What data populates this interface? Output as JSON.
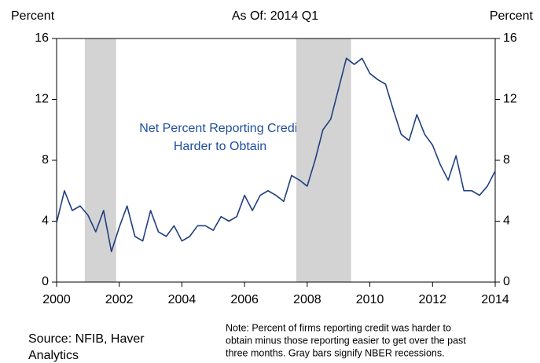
{
  "chart_data": {
    "type": "line",
    "title": "As Of: 2014 Q1",
    "y_label": "Percent",
    "y2_label": "Percent",
    "annotation": [
      "Net Percent Reporting Credit",
      "Harder to Obtain"
    ],
    "source": [
      "Source: NFIB, Haver",
      "Analytics"
    ],
    "note": [
      "Note: Percent of firms reporting credit was harder to",
      "obtain minus those reporting easier to get over the past",
      "three months. Gray bars signify NBER recessions."
    ],
    "xlim": [
      2000,
      2014
    ],
    "xticks": [
      2000,
      2002,
      2004,
      2006,
      2008,
      2010,
      2012,
      2014
    ],
    "ylim": [
      0,
      16
    ],
    "yticks": [
      0,
      4,
      8,
      12,
      16
    ],
    "recessions": [
      [
        2000.9,
        2001.9
      ],
      [
        2007.65,
        2009.4
      ]
    ],
    "recession_color": "#d3d3d3",
    "x": [
      2000,
      2000.25,
      2000.5,
      2000.75,
      2001,
      2001.25,
      2001.5,
      2001.75,
      2002,
      2002.25,
      2002.5,
      2002.75,
      2003,
      2003.25,
      2003.5,
      2003.75,
      2004,
      2004.25,
      2004.5,
      2004.75,
      2005,
      2005.25,
      2005.5,
      2005.75,
      2006,
      2006.25,
      2006.5,
      2006.75,
      2007,
      2007.25,
      2007.5,
      2007.75,
      2008,
      2008.25,
      2008.5,
      2008.75,
      2009,
      2009.25,
      2009.5,
      2009.75,
      2010,
      2010.25,
      2010.5,
      2010.75,
      2011,
      2011.25,
      2011.5,
      2011.75,
      2012,
      2012.25,
      2012.5,
      2012.75,
      2013,
      2013.25,
      2013.5,
      2013.75,
      2014
    ],
    "series": [
      {
        "color": "#1f3f7f",
        "values": [
          3.9,
          6.0,
          4.7,
          5.0,
          4.4,
          3.3,
          4.7,
          2.0,
          3.6,
          5.0,
          3.0,
          2.7,
          4.7,
          3.3,
          3.0,
          3.7,
          2.7,
          3.0,
          3.7,
          3.7,
          3.4,
          4.3,
          4.0,
          4.3,
          5.7,
          4.7,
          5.7,
          6.0,
          5.7,
          5.3,
          7.0,
          6.7,
          6.3,
          8.0,
          10.0,
          10.7,
          12.7,
          14.7,
          14.3,
          14.7,
          13.7,
          13.3,
          13.0,
          11.3,
          9.7,
          9.3,
          11.0,
          9.7,
          9.0,
          7.7,
          6.7,
          8.3,
          6.0,
          6.0,
          5.7,
          6.3,
          7.3
        ]
      }
    ]
  }
}
